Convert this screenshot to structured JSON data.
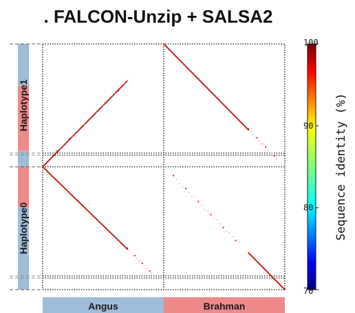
{
  "chart_data": {
    "type": "dotplot",
    "title": ". FALCON-Unzip + SALSA2",
    "x_groups": [
      {
        "label": "Angus",
        "color": "#9fbcd8"
      },
      {
        "label": "Brahman",
        "color": "#ee8a8a"
      }
    ],
    "y_groups": [
      {
        "label": "Haplotype1",
        "segments": [
          {
            "color": "#9fbcd8",
            "from": 0.0,
            "to": 0.34
          },
          {
            "color": "#ee8a8a",
            "from": 0.34,
            "to": 0.87
          },
          {
            "color": "#9fbcd8",
            "from": 0.87,
            "to": 1.0
          }
        ]
      },
      {
        "label": "Haplotype0",
        "segments": [
          {
            "color": "#ee8a8a",
            "from": 0.0,
            "to": 0.33
          },
          {
            "color": "#9fbcd8",
            "from": 0.33,
            "to": 1.0
          }
        ]
      }
    ],
    "panels": [
      {
        "name": "Haplotype1 vs Angus",
        "row": 0,
        "col": 0,
        "lines": [
          {
            "x1": 0.0,
            "y1": 1.0,
            "x2": 0.7,
            "y2": 0.3,
            "identity": 99.9
          }
        ],
        "dots_from": 0.12,
        "dots_to": 0.7,
        "dot_count": 24
      },
      {
        "name": "Haplotype1 vs Brahman",
        "row": 0,
        "col": 1,
        "lines": [
          {
            "x1": 0.0,
            "y1": 0.0,
            "x2": 0.7,
            "y2": 0.7,
            "identity": 99.9
          }
        ],
        "dots_from": 0.7,
        "dots_to": 0.93,
        "dot_count": 14
      },
      {
        "name": "Haplotype0 vs Angus",
        "row": 1,
        "col": 0,
        "lines": [
          {
            "x1": 0.0,
            "y1": 0.0,
            "x2": 0.7,
            "y2": 0.67,
            "identity": 99.9
          }
        ],
        "dots_from": 0.7,
        "dots_to": 0.9,
        "dot_count": 14
      },
      {
        "name": "Haplotype0 vs Brahman",
        "row": 1,
        "col": 1,
        "lines": [
          {
            "x1": 0.7,
            "y1": 0.7,
            "x2": 1.0,
            "y2": 1.0,
            "identity": 99.9
          }
        ],
        "dots_from": 0.08,
        "dots_to": 0.62,
        "dot_count": 22
      }
    ],
    "colorbar": {
      "title": "Sequence identity (%)",
      "min": 70,
      "max": 100,
      "ticks": [
        70,
        80,
        90,
        100
      ],
      "colormap": "jet"
    },
    "line_color": "#c0251f",
    "grid": true
  }
}
